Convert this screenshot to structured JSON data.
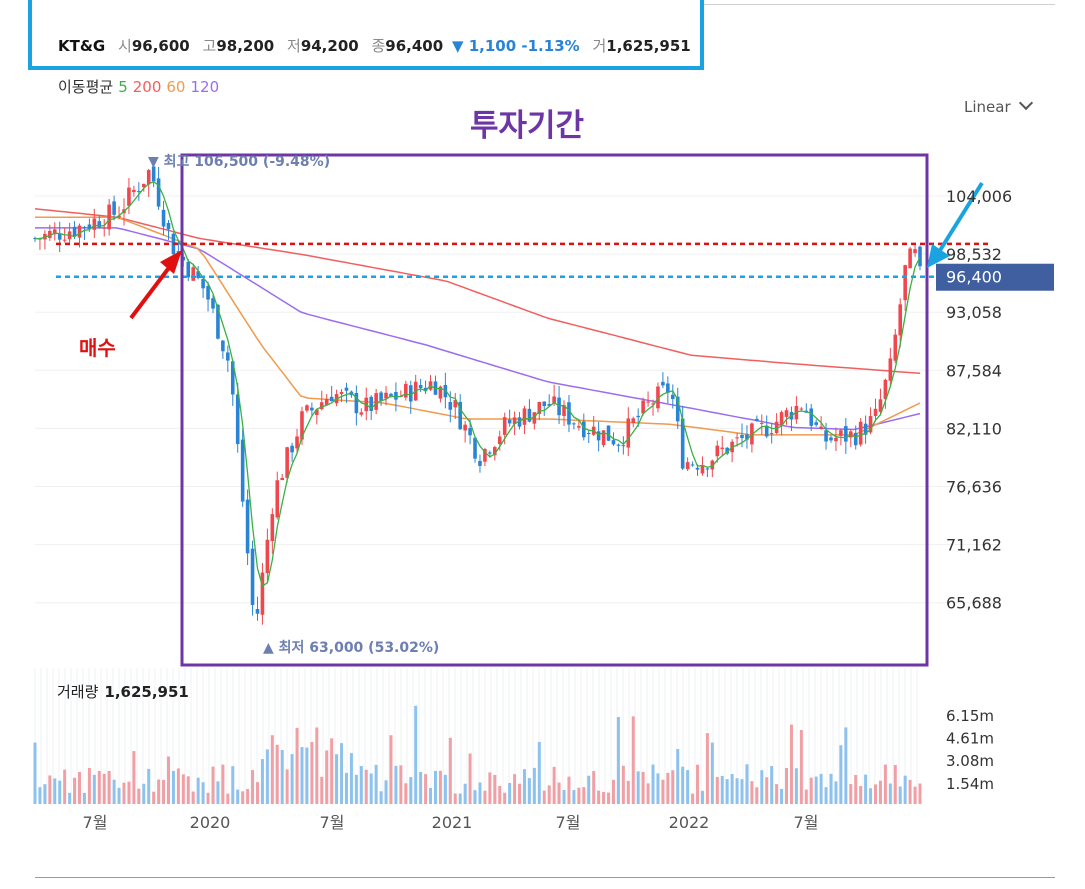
{
  "header": {
    "name": "KT&G",
    "open_label": "시",
    "open": "96,600",
    "high_label": "고",
    "high": "98,200",
    "low_label": "저",
    "low": "94,200",
    "close_label": "종",
    "close": "96,400",
    "change": "▼ 1,100 -1.13%",
    "volume_label": "거",
    "volume": "1,625,951"
  },
  "moving_average": {
    "title": "이동평균",
    "periods": [
      {
        "label": "5",
        "color": "#3cb043"
      },
      {
        "label": "200",
        "color": "#f05f5f"
      },
      {
        "label": "60",
        "color": "#f09a4e"
      },
      {
        "label": "120",
        "color": "#9b6cf0"
      }
    ]
  },
  "scale_button": "Linear",
  "annotations": {
    "period_title": "투자기간",
    "buy_label": "매수",
    "high_marker": "최고 106,500 (-9.48%)",
    "low_marker": "최저 63,000 (53.02%)",
    "current_price_tag": "96,400"
  },
  "colors": {
    "up": "#f0474e",
    "down": "#2a84d6",
    "ma5": "#3cb043",
    "ma200": "#f05f5f",
    "ma60": "#f09a4e",
    "ma120": "#9b6cf0",
    "period_box": "#6d35a6",
    "buy_arrow": "#e01010",
    "current_arrow": "#1aa3e0",
    "price_tag": "#3f5fa1"
  },
  "volume": {
    "title": "거래량",
    "value": "1,625,951",
    "ticks": [
      "6.15m",
      "4.61m",
      "3.08m",
      "1.54m"
    ]
  },
  "chart_data": {
    "type": "candlestick",
    "y_ticks": [
      "104,006",
      "98,532",
      "93,058",
      "87,584",
      "82,110",
      "76,636",
      "71,162",
      "65,688"
    ],
    "x_ticks": [
      "7월",
      "2020",
      "7월",
      "2021",
      "7월",
      "2022",
      "7월"
    ],
    "horizontal_lines": [
      {
        "name": "buy_level",
        "value": 99500,
        "color": "#e01010"
      },
      {
        "name": "current_level",
        "value": 96400,
        "color": "#1aa3e0"
      }
    ],
    "price_anchors": [
      [
        "2019-05-01",
        100000
      ],
      [
        "2019-07-01",
        101000
      ],
      [
        "2019-09-01",
        102500
      ],
      [
        "2019-10-20",
        106500
      ],
      [
        "2019-11-20",
        99500
      ],
      [
        "2020-01-10",
        95000
      ],
      [
        "2020-02-15",
        88000
      ],
      [
        "2020-03-23",
        63000
      ],
      [
        "2020-04-20",
        76000
      ],
      [
        "2020-06-01",
        83000
      ],
      [
        "2020-07-15",
        85500
      ],
      [
        "2020-09-01",
        84000
      ],
      [
        "2020-10-15",
        85000
      ],
      [
        "2020-12-15",
        86500
      ],
      [
        "2021-01-15",
        84000
      ],
      [
        "2021-02-20",
        79500
      ],
      [
        "2021-04-01",
        82500
      ],
      [
        "2021-06-01",
        84500
      ],
      [
        "2021-07-20",
        82500
      ],
      [
        "2021-09-15",
        81000
      ],
      [
        "2021-11-01",
        84500
      ],
      [
        "2021-12-01",
        86000
      ],
      [
        "2021-12-20",
        79000
      ],
      [
        "2022-01-20",
        79000
      ],
      [
        "2022-03-01",
        80500
      ],
      [
        "2022-05-01",
        82500
      ],
      [
        "2022-06-15",
        84500
      ],
      [
        "2022-07-15",
        81000
      ],
      [
        "2022-09-01",
        81500
      ],
      [
        "2022-10-01",
        83000
      ],
      [
        "2022-10-25",
        88000
      ],
      [
        "2022-11-15",
        97000
      ],
      [
        "2022-11-28",
        98800
      ],
      [
        "2022-12-07",
        96400
      ]
    ],
    "ma200_anchors": [
      [
        "2019-05-01",
        102800
      ],
      [
        "2019-09-01",
        102000
      ],
      [
        "2020-01-01",
        100000
      ],
      [
        "2020-06-01",
        98500
      ],
      [
        "2021-01-01",
        96000
      ],
      [
        "2021-06-01",
        92500
      ],
      [
        "2022-01-01",
        89000
      ],
      [
        "2022-06-01",
        88200
      ],
      [
        "2022-12-07",
        87300
      ]
    ],
    "ma120_anchors": [
      [
        "2019-05-01",
        101000
      ],
      [
        "2019-09-01",
        101000
      ],
      [
        "2020-01-01",
        99000
      ],
      [
        "2020-06-01",
        93000
      ],
      [
        "2020-12-01",
        90000
      ],
      [
        "2021-06-01",
        86500
      ],
      [
        "2022-01-01",
        84000
      ],
      [
        "2022-06-01",
        82200
      ],
      [
        "2022-09-01",
        82000
      ],
      [
        "2022-12-07",
        83500
      ]
    ],
    "ma60_anchors": [
      [
        "2019-05-01",
        102000
      ],
      [
        "2019-09-01",
        102000
      ],
      [
        "2020-01-01",
        99000
      ],
      [
        "2020-04-01",
        90000
      ],
      [
        "2020-06-01",
        85000
      ],
      [
        "2020-10-01",
        84500
      ],
      [
        "2021-02-01",
        83000
      ],
      [
        "2021-06-01",
        83000
      ],
      [
        "2021-12-01",
        82500
      ],
      [
        "2022-04-01",
        81500
      ],
      [
        "2022-09-01",
        81500
      ],
      [
        "2022-12-07",
        84500
      ]
    ]
  }
}
